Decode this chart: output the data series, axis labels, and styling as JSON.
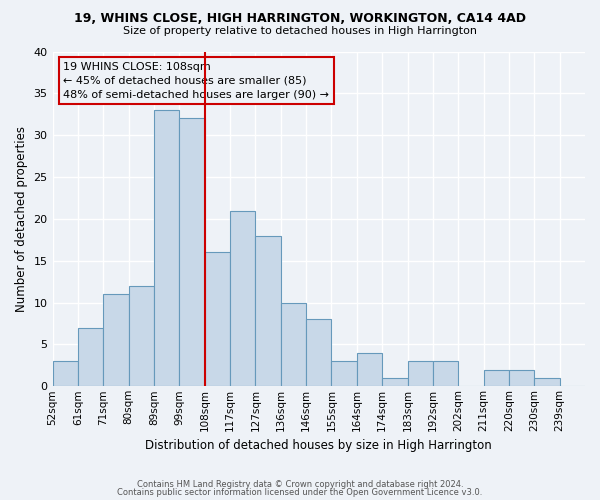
{
  "title1": "19, WHINS CLOSE, HIGH HARRINGTON, WORKINGTON, CA14 4AD",
  "title2": "Size of property relative to detached houses in High Harrington",
  "xlabel": "Distribution of detached houses by size in High Harrington",
  "ylabel": "Number of detached properties",
  "bin_labels": [
    "52sqm",
    "61sqm",
    "71sqm",
    "80sqm",
    "89sqm",
    "99sqm",
    "108sqm",
    "117sqm",
    "127sqm",
    "136sqm",
    "146sqm",
    "155sqm",
    "164sqm",
    "174sqm",
    "183sqm",
    "192sqm",
    "202sqm",
    "211sqm",
    "220sqm",
    "230sqm",
    "239sqm"
  ],
  "counts": [
    3,
    7,
    11,
    12,
    33,
    32,
    16,
    21,
    18,
    10,
    8,
    3,
    4,
    1,
    3,
    3,
    0,
    2,
    2,
    1,
    0
  ],
  "bar_color": "#c8d8e8",
  "bar_edge_color": "#6699bb",
  "ref_line_idx": 6,
  "ref_line_color": "#cc0000",
  "annotation_line1": "19 WHINS CLOSE: 108sqm",
  "annotation_line2": "← 45% of detached houses are smaller (85)",
  "annotation_line3": "48% of semi-detached houses are larger (90) →",
  "annotation_box_edge_color": "#cc0000",
  "ylim": [
    0,
    40
  ],
  "yticks": [
    0,
    5,
    10,
    15,
    20,
    25,
    30,
    35,
    40
  ],
  "bg_color": "#eef2f7",
  "grid_color": "#ffffff",
  "footer1": "Contains HM Land Registry data © Crown copyright and database right 2024.",
  "footer2": "Contains public sector information licensed under the Open Government Licence v3.0."
}
